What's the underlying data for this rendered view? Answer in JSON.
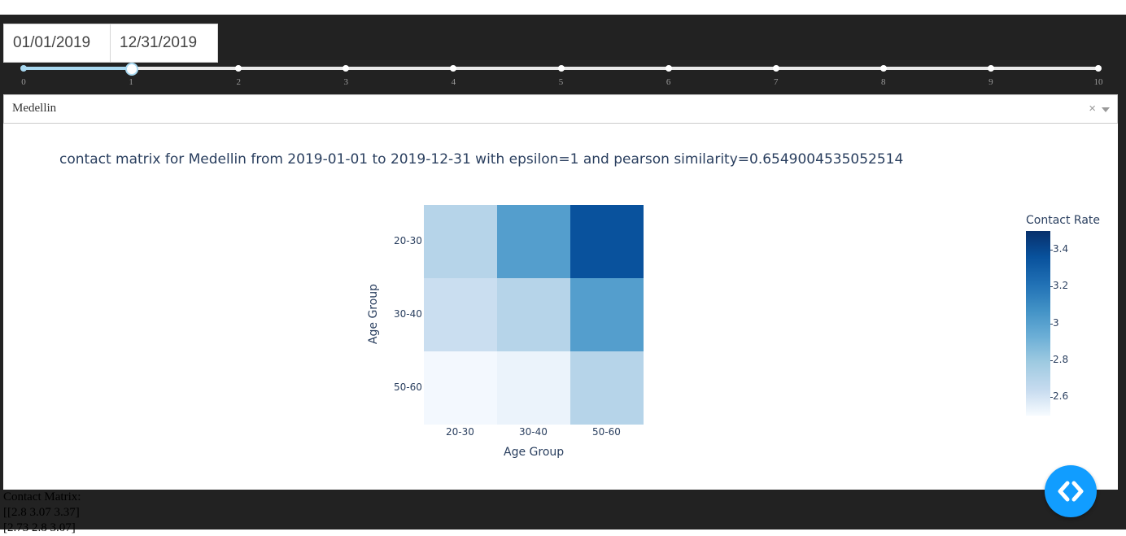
{
  "dates": {
    "start": "01/01/2019",
    "end": "12/31/2019"
  },
  "slider": {
    "marks": [
      "0",
      "1",
      "2",
      "3",
      "4",
      "5",
      "6",
      "7",
      "8",
      "9",
      "10"
    ],
    "value": 1,
    "min": 0,
    "max": 10
  },
  "dropdown": {
    "value": "Medellin",
    "clear": "×"
  },
  "chart_data": {
    "type": "heatmap",
    "title": "contact matrix for Medellin from 2019-01-01 to 2019-12-31 with epsilon=1 and pearson similarity=0.6549004535052514",
    "xlabel": "Age Group",
    "ylabel": "Age Group",
    "x": [
      "20-30",
      "30-40",
      "50-60"
    ],
    "y": [
      "20-30",
      "30-40",
      "50-60"
    ],
    "z": [
      [
        2.8,
        3.07,
        3.37
      ],
      [
        2.73,
        2.8,
        3.07
      ],
      [
        2.52,
        2.56,
        2.8
      ]
    ],
    "colorscale": [
      "#f7fbff",
      "#deebf7",
      "#c6dbef",
      "#9ecae1",
      "#6baed6",
      "#4292c6",
      "#2171b5",
      "#08519c",
      "#08306b"
    ],
    "zmin": 2.5,
    "zmax": 3.5,
    "colorbar": {
      "title": "Contact Rate",
      "ticks": [
        "3.4",
        "3.2",
        "3",
        "2.8",
        "2.6"
      ]
    }
  },
  "output": {
    "lines": [
      "Contact Matrix:",
      "[[2.8 3.07 3.37]",
      "[2.73 2.8 3.07]"
    ]
  },
  "fab": {
    "icon": "code-icon",
    "color": "#119dff"
  }
}
